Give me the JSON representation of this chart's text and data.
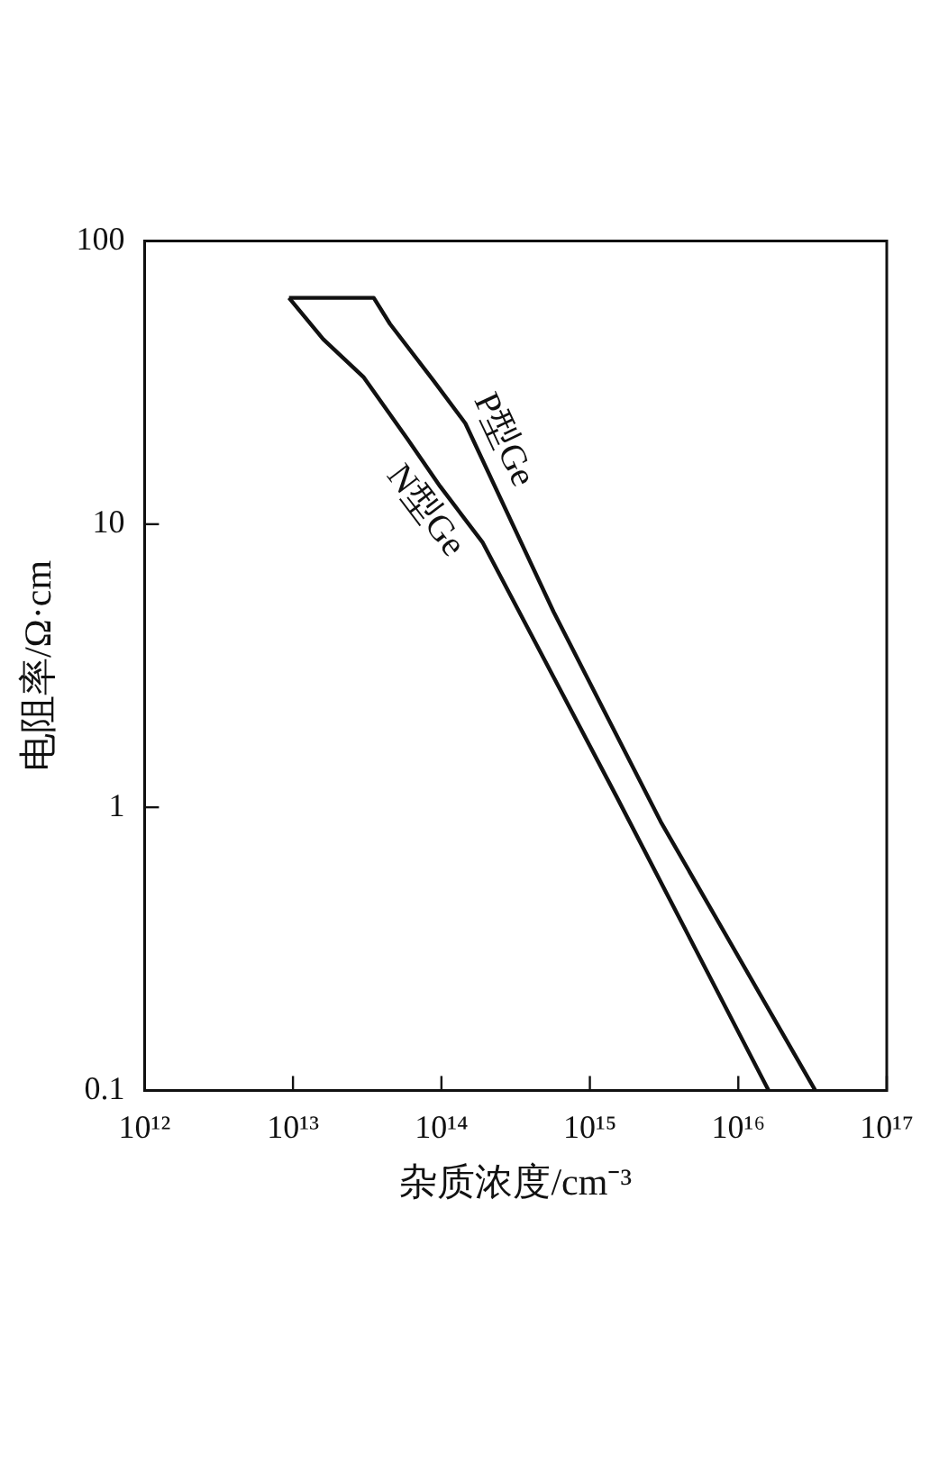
{
  "chart_data": {
    "type": "line",
    "xlabel": "杂质浓度/cm⁻³",
    "ylabel": "电阻率/Ω·cm",
    "log": "xy",
    "xlim": [
      1000000000000.0,
      1e+17
    ],
    "xticks": [
      {
        "value": 1000000000000.0,
        "label": "10¹²"
      },
      {
        "value": 10000000000000.0,
        "label": "10¹³"
      },
      {
        "value": 100000000000000.0,
        "label": "10¹⁴"
      },
      {
        "value": 1000000000000000.0,
        "label": "10¹⁵"
      },
      {
        "value": 1e+16,
        "label": "10¹⁶"
      },
      {
        "value": 1e+17,
        "label": "10¹⁷"
      }
    ],
    "ylim": [
      0.1,
      100
    ],
    "yticks": [
      0.1,
      1,
      10,
      100
    ],
    "series": [
      {
        "name": "P型Ge",
        "color": "#111111",
        "x": [
          9400000000000.0,
          35000000000000.0,
          45000000000000.0,
          89000000000000.0,
          145000000000000.0,
          570000000000000.0,
          3000000000000000.0,
          3.3e+16
        ],
        "values": [
          63,
          63,
          51,
          32,
          22.7,
          4.9,
          0.89,
          0.1
        ]
      },
      {
        "name": "N型Ge",
        "color": "#111111",
        "x": [
          9400000000000.0,
          16000000000000.0,
          30000000000000.0,
          59000000000000.0,
          98000000000000.0,
          190000000000000.0,
          1500000000000000.0,
          1.6e+16
        ],
        "values": [
          63,
          45,
          33,
          20,
          13.6,
          8.6,
          1.1,
          0.1
        ]
      }
    ],
    "line_style": "solid",
    "marker": "none"
  }
}
